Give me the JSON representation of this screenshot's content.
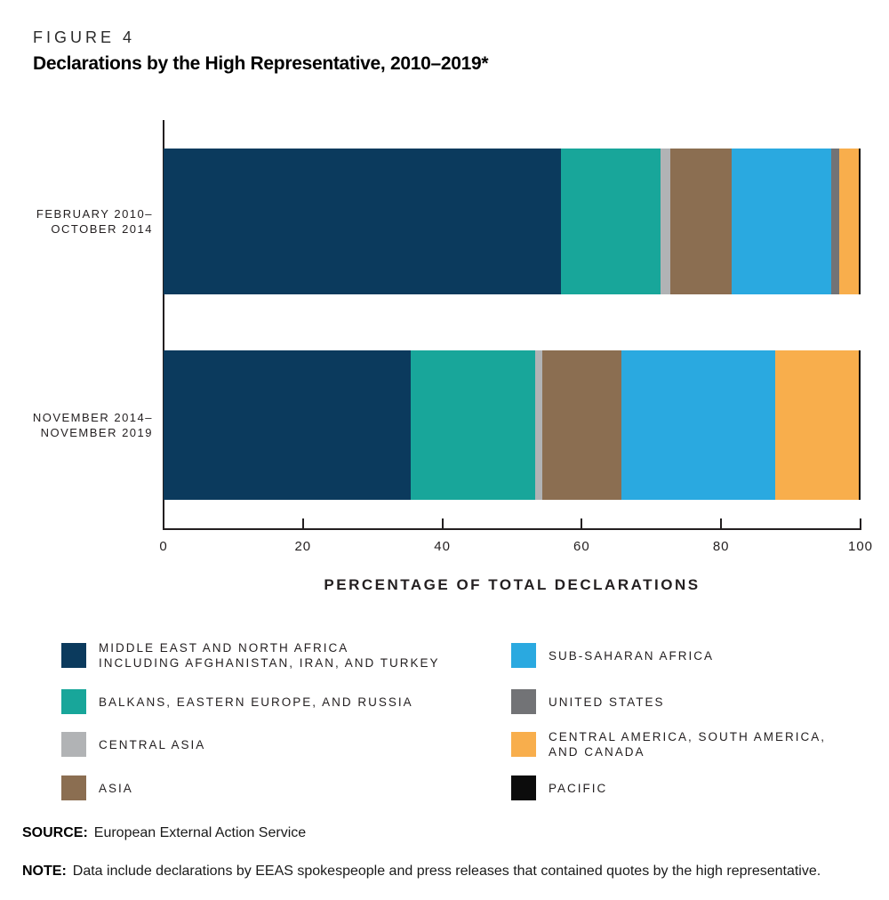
{
  "figure_label": "FIGURE 4",
  "title": "Declarations by the High Representative, 2010–2019*",
  "chart_data": {
    "type": "bar",
    "orientation": "horizontal",
    "stacked": true,
    "title": "Declarations by the High Representative, 2010–2019*",
    "xlabel": "PERCENTAGE OF TOTAL DECLARATIONS",
    "ylabel": "",
    "xlim": [
      0,
      100
    ],
    "x_ticks": [
      0,
      20,
      40,
      60,
      80,
      100
    ],
    "grid": false,
    "legend_position": "bottom, two columns",
    "categories": [
      "FEBRUARY 2010–OCTOBER 2014",
      "NOVEMBER 2014–NOVEMBER 2019"
    ],
    "series": [
      {
        "name": "MIDDLE EAST AND NORTH AFRICA INCLUDING AFGHANISTAN, IRAN, AND TURKEY",
        "color": "#0b3a5d",
        "values": [
          57.0,
          35.5
        ]
      },
      {
        "name": "BALKANS, EASTERN EUROPE, AND RUSSIA",
        "color": "#18a69a",
        "values": [
          14.3,
          17.8
        ]
      },
      {
        "name": "CENTRAL ASIA",
        "color": "#b1b3b5",
        "values": [
          1.4,
          1.0
        ]
      },
      {
        "name": "ASIA",
        "color": "#8b6e51",
        "values": [
          8.8,
          11.4
        ]
      },
      {
        "name": "SUB-SAHARAN AFRICA",
        "color": "#2aa9e0",
        "values": [
          14.3,
          22.1
        ]
      },
      {
        "name": "UNITED STATES",
        "color": "#727376",
        "values": [
          1.2,
          0
        ]
      },
      {
        "name": "CENTRAL AMERICA, SOUTH AMERICA, AND CANADA",
        "color": "#f8ae4c",
        "values": [
          2.8,
          11.9
        ]
      },
      {
        "name": "PACIFIC",
        "color": "#0c0c0c",
        "values": [
          0.2,
          0.3
        ]
      }
    ]
  },
  "category_labels": [
    [
      "FEBRUARY 2010–",
      "OCTOBER 2014"
    ],
    [
      "NOVEMBER 2014–",
      "NOVEMBER 2019"
    ]
  ],
  "legend": {
    "left_column": [
      {
        "color": "#0b3a5d",
        "label_lines": [
          "MIDDLE EAST AND NORTH AFRICA",
          "INCLUDING AFGHANISTAN, IRAN, AND TURKEY"
        ]
      },
      {
        "color": "#18a69a",
        "label_lines": [
          "BALKANS, EASTERN EUROPE, AND RUSSIA"
        ]
      },
      {
        "color": "#b1b3b5",
        "label_lines": [
          "CENTRAL ASIA"
        ]
      },
      {
        "color": "#8b6e51",
        "label_lines": [
          "ASIA"
        ]
      }
    ],
    "right_column": [
      {
        "color": "#2aa9e0",
        "label_lines": [
          "SUB-SAHARAN AFRICA"
        ]
      },
      {
        "color": "#727376",
        "label_lines": [
          "UNITED STATES"
        ]
      },
      {
        "color": "#f8ae4c",
        "label_lines": [
          "CENTRAL AMERICA, SOUTH AMERICA,",
          "AND CANADA"
        ]
      },
      {
        "color": "#0c0c0c",
        "label_lines": [
          "PACIFIC"
        ]
      }
    ]
  },
  "source": {
    "label": "SOURCE:",
    "text": "European External Action Service"
  },
  "note": {
    "label": "NOTE:",
    "text": "Data include declarations by EEAS spokespeople and press releases that contained quotes by the high representative."
  }
}
